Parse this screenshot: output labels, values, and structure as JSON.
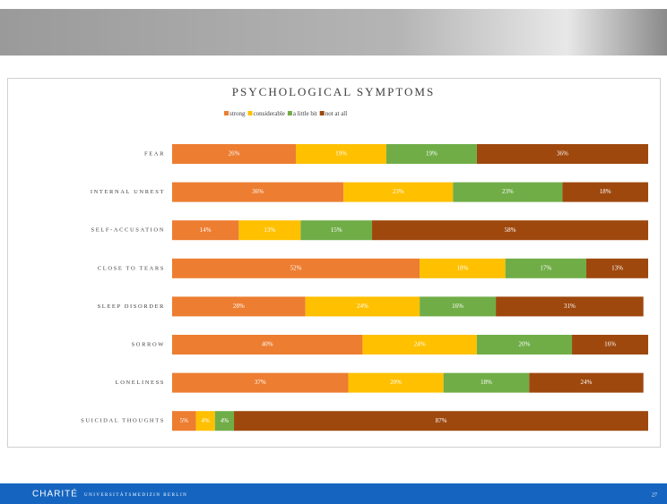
{
  "chart_data": {
    "type": "stacked-bar-horizontal",
    "title": "PSYCHOLOGICAL SYMPTOMS",
    "categories": [
      "FEAR",
      "INTERNAL UNREST",
      "SELF-ACCUSATION",
      "CLOSE TO TEARS",
      "SLEEP DISORDER",
      "SORROW",
      "LONELINESS",
      "SUICIDAL THOUGHTS"
    ],
    "series": [
      {
        "name": "strong",
        "color": "#ed7d31",
        "values": [
          26,
          36,
          14,
          52,
          28,
          40,
          37,
          5
        ],
        "value_labels": [
          "26%",
          "36%",
          "14%",
          "52%",
          "28%",
          "40%",
          "37%",
          "5%"
        ]
      },
      {
        "name": "considerable",
        "color": "#ffc000",
        "values": [
          19,
          23,
          13,
          18,
          24,
          24,
          20,
          4
        ],
        "value_labels": [
          "19%",
          "23%",
          "13%",
          "18%",
          "24%",
          "24%",
          "20%",
          "4%"
        ]
      },
      {
        "name": "a little bit",
        "color": "#70ad47",
        "values": [
          19,
          23,
          15,
          17,
          16,
          20,
          18,
          4
        ],
        "value_labels": [
          "19%",
          "23%",
          "15%",
          "17%",
          "16%",
          "20%",
          "18%",
          "4%"
        ]
      },
      {
        "name": "not at all",
        "color": "#9e480e",
        "values": [
          36,
          18,
          58,
          13,
          31,
          16,
          24,
          87
        ],
        "value_labels": [
          "36%",
          "18%",
          "58%",
          "13%",
          "31%",
          "16%",
          "24%",
          "87%"
        ]
      }
    ]
  },
  "footer": {
    "logo": "CHARITÉ",
    "institution": "UNIVERSITÄTSMEDIZIN BERLIN",
    "page": "27"
  }
}
